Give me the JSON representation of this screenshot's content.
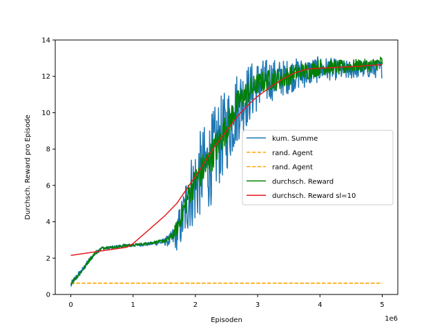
{
  "chart_data": {
    "type": "line",
    "title": "",
    "xlabel": "Episoden",
    "ylabel": "Durchsch. Reward pro Episode",
    "x_offset_label": "1e6",
    "x_scale": 1000000,
    "xlim": [
      -250000,
      5250000
    ],
    "ylim": [
      0,
      14
    ],
    "x_ticks": [
      0,
      1000000,
      2000000,
      3000000,
      4000000,
      5000000
    ],
    "x_tick_labels": [
      "0",
      "1",
      "2",
      "3",
      "4",
      "5"
    ],
    "y_ticks": [
      0,
      2,
      4,
      6,
      8,
      10,
      12,
      14
    ],
    "y_tick_labels": [
      "0",
      "2",
      "4",
      "6",
      "8",
      "10",
      "12",
      "14"
    ],
    "grid": false,
    "legend_position": "center-right",
    "series": [
      {
        "name": "kum. Summe",
        "color": "#1f77b4",
        "style": "solid",
        "noisy": true,
        "x": [
          0,
          100000,
          200000,
          300000,
          400000,
          500000,
          600000,
          700000,
          800000,
          900000,
          1000000,
          1100000,
          1200000,
          1300000,
          1400000,
          1500000,
          1600000,
          1700000,
          1800000,
          1900000,
          2000000,
          2100000,
          2200000,
          2300000,
          2400000,
          2500000,
          2600000,
          2700000,
          2800000,
          2900000,
          3000000,
          3200000,
          3400000,
          3600000,
          3800000,
          4000000,
          4200000,
          4400000,
          4600000,
          4800000,
          5000000
        ],
        "y": [
          0.5,
          1.0,
          1.4,
          1.9,
          2.3,
          2.55,
          2.55,
          2.6,
          2.65,
          2.7,
          2.7,
          2.75,
          2.75,
          2.8,
          2.85,
          2.9,
          3.0,
          3.3,
          4.2,
          5.5,
          6.0,
          6.8,
          7.0,
          7.8,
          8.5,
          9.0,
          9.8,
          10.5,
          10.8,
          11.2,
          11.5,
          11.8,
          11.9,
          12.1,
          12.2,
          12.4,
          12.4,
          12.3,
          12.4,
          12.4,
          12.4
        ],
        "spread": [
          0.2,
          0.2,
          0.15,
          0.15,
          0.12,
          0.1,
          0.1,
          0.1,
          0.1,
          0.1,
          0.1,
          0.1,
          0.1,
          0.1,
          0.15,
          0.2,
          0.4,
          0.9,
          1.5,
          2.0,
          2.3,
          2.4,
          2.5,
          2.5,
          2.4,
          2.3,
          2.2,
          2.0,
          1.8,
          1.6,
          1.4,
          1.2,
          1.0,
          0.9,
          0.8,
          0.7,
          0.6,
          0.55,
          0.5,
          0.5,
          0.5
        ]
      },
      {
        "name": "rand. Agent",
        "color": "#ffa500",
        "style": "dashed",
        "x": [
          0,
          5000000
        ],
        "y": [
          0.62,
          0.62
        ]
      },
      {
        "name": "rand. Agent",
        "color": "#ffa500",
        "style": "dashed",
        "x": [
          0,
          5000000
        ],
        "y": [
          0.62,
          0.62
        ]
      },
      {
        "name": "durchsch. Reward",
        "color": "#008000",
        "style": "solid",
        "noisy": true,
        "x": [
          0,
          100000,
          200000,
          300000,
          400000,
          500000,
          600000,
          700000,
          800000,
          900000,
          1000000,
          1100000,
          1200000,
          1300000,
          1400000,
          1500000,
          1600000,
          1700000,
          1800000,
          1900000,
          2000000,
          2100000,
          2200000,
          2300000,
          2400000,
          2500000,
          2600000,
          2700000,
          2800000,
          2900000,
          3000000,
          3200000,
          3400000,
          3600000,
          3800000,
          4000000,
          4200000,
          4400000,
          4600000,
          4800000,
          5000000
        ],
        "y": [
          0.6,
          1.0,
          1.4,
          1.9,
          2.3,
          2.55,
          2.6,
          2.6,
          2.65,
          2.7,
          2.7,
          2.75,
          2.8,
          2.85,
          2.9,
          2.95,
          3.1,
          3.6,
          4.5,
          5.6,
          6.2,
          6.8,
          7.2,
          7.9,
          8.5,
          9.2,
          9.9,
          10.6,
          11.0,
          11.3,
          11.6,
          11.8,
          11.9,
          12.2,
          12.3,
          12.5,
          12.5,
          12.5,
          12.6,
          12.6,
          12.8
        ],
        "spread": [
          0.12,
          0.1,
          0.1,
          0.1,
          0.08,
          0.08,
          0.07,
          0.07,
          0.07,
          0.07,
          0.07,
          0.07,
          0.07,
          0.07,
          0.08,
          0.1,
          0.2,
          0.4,
          0.6,
          0.7,
          0.8,
          0.9,
          0.9,
          0.9,
          0.9,
          0.8,
          0.8,
          0.8,
          0.7,
          0.7,
          0.6,
          0.6,
          0.6,
          0.5,
          0.5,
          0.45,
          0.4,
          0.4,
          0.35,
          0.35,
          0.35
        ]
      },
      {
        "name": "durchsch. Reward sl=10",
        "color": "#e41a1c",
        "style": "solid",
        "x": [
          0,
          500000,
          900000,
          1000000,
          1200000,
          1500000,
          1700000,
          1900000,
          2100000,
          2300000,
          2500000,
          2700000,
          2900000,
          3000000,
          3200000,
          3400000,
          3600000,
          3800000,
          4000000,
          4300000,
          4600000,
          5000000
        ],
        "y": [
          2.15,
          2.4,
          2.6,
          2.8,
          3.4,
          4.3,
          5.0,
          6.0,
          7.0,
          8.1,
          9.0,
          9.9,
          10.6,
          10.9,
          11.4,
          11.85,
          12.2,
          12.4,
          12.45,
          12.5,
          12.55,
          12.65
        ]
      }
    ]
  }
}
